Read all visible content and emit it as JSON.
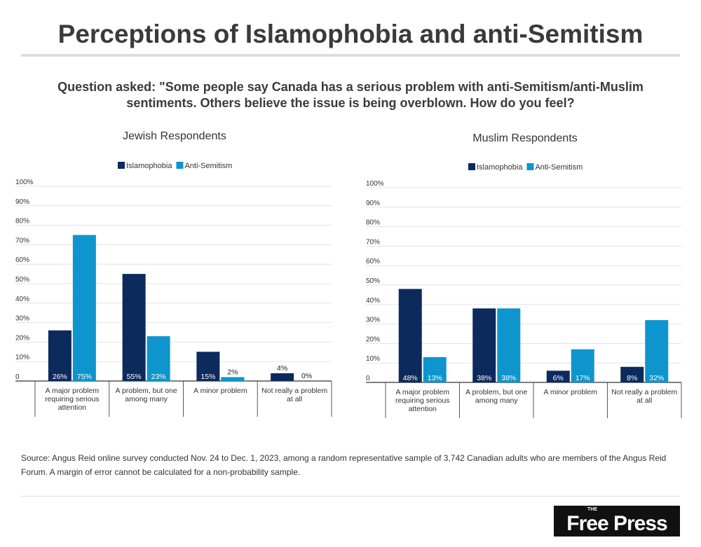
{
  "title": "Perceptions of Islamophobia and anti-Semitism",
  "question": "Question asked: \"Some people say Canada has a serious problem with anti-Semitism/anti-Muslim sentiments. Others believe the issue is being overblown. How do you feel?",
  "source": "Source: Angus Reid online survey conducted Nov. 24 to Dec. 1, 2023, among a random representative sample of 3,742 Canadian adults who are members of the Angus Reid Forum. A margin of error cannot be calculated for a non-probability sample.",
  "logo": {
    "small": "THE",
    "main": "Free Press"
  },
  "colors": {
    "islamophobia": "#0c2a5c",
    "anti_semitism": "#0e95cd"
  },
  "chart_data": [
    {
      "type": "bar",
      "title": "Jewish Respondents",
      "categories": [
        [
          "A major problem",
          "requiring serious",
          "attention"
        ],
        [
          "A problem, but one",
          "among many"
        ],
        [
          "A minor problem"
        ],
        [
          "Not really a problem",
          "at all"
        ]
      ],
      "series": [
        {
          "name": "Islamophobia",
          "values": [
            26,
            55,
            15,
            4
          ]
        },
        {
          "name": "Anti-Semitism",
          "values": [
            75,
            23,
            2,
            0
          ]
        }
      ],
      "yticks": [
        "0",
        "10%",
        "20%",
        "30%",
        "40%",
        "50%",
        "60%",
        "70%",
        "80%",
        "90%",
        "100%"
      ],
      "ylim": [
        0,
        100
      ],
      "grid": true,
      "legend": "top-center"
    },
    {
      "type": "bar",
      "title": "Muslim Respondents",
      "categories": [
        [
          "A major problem",
          "requiring serious",
          "attention"
        ],
        [
          "A problem, but one",
          "among many"
        ],
        [
          "A minor problem"
        ],
        [
          "Not really a problem",
          "at all"
        ]
      ],
      "series": [
        {
          "name": "Islamophobia",
          "values": [
            48,
            38,
            6,
            8
          ]
        },
        {
          "name": "Anti-Semitism",
          "values": [
            13,
            38,
            17,
            32
          ]
        }
      ],
      "yticks": [
        "0",
        "10%",
        "20%",
        "30%",
        "40%",
        "50%",
        "60%",
        "70%",
        "80%",
        "90%",
        "100%"
      ],
      "ylim": [
        0,
        100
      ],
      "grid": true,
      "legend": "top-center"
    }
  ]
}
